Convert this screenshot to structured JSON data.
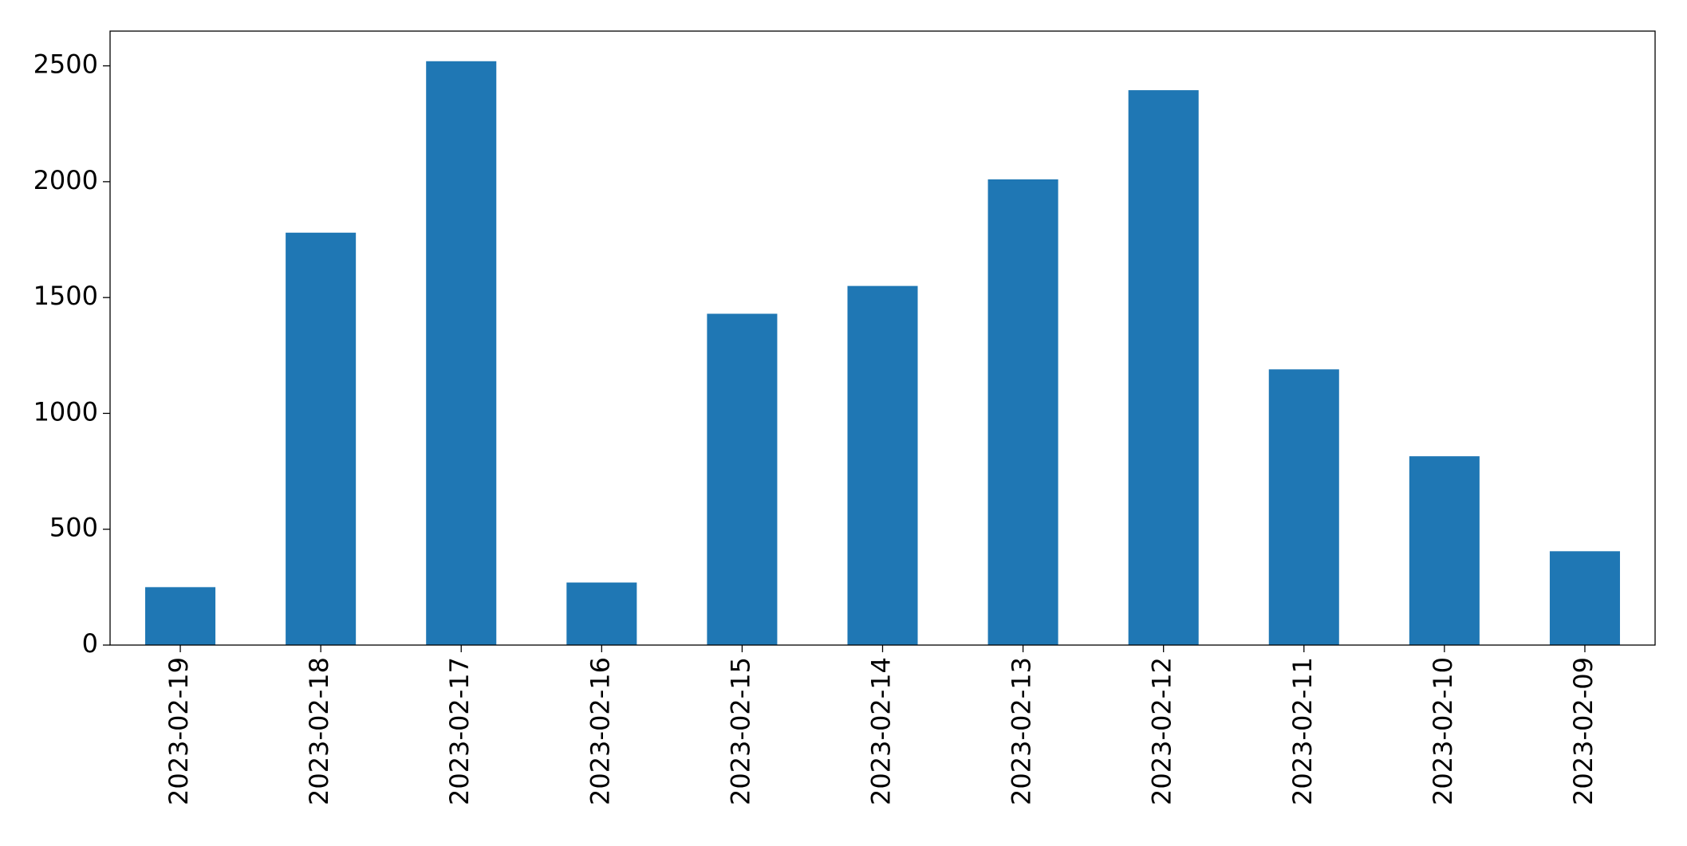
{
  "chart_data": {
    "type": "bar",
    "categories": [
      "2023-02-19",
      "2023-02-18",
      "2023-02-17",
      "2023-02-16",
      "2023-02-15",
      "2023-02-14",
      "2023-02-13",
      "2023-02-12",
      "2023-02-11",
      "2023-02-10",
      "2023-02-09"
    ],
    "values": [
      250,
      1780,
      2520,
      270,
      1430,
      1550,
      2010,
      2395,
      1190,
      815,
      405
    ],
    "color": "#1f77b4",
    "ylim": [
      0,
      2650
    ],
    "yticks": [
      0,
      500,
      1000,
      1500,
      2000,
      2500
    ],
    "grid": false
  }
}
